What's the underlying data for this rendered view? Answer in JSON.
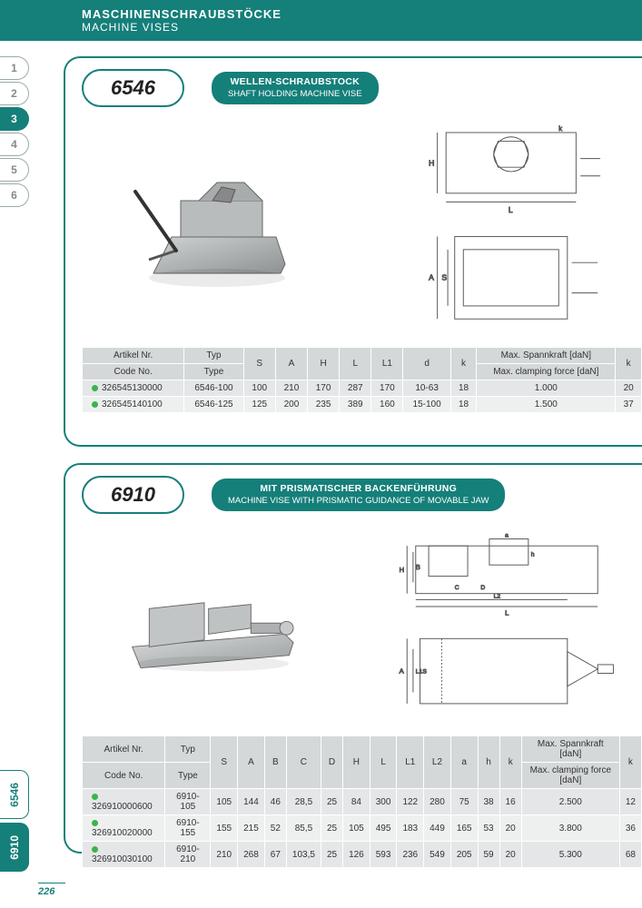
{
  "header": {
    "de": "MASCHINENSCHRAUBSTÖCKE",
    "en": "MACHINE VISES"
  },
  "page_number": "226",
  "nav_tabs": [
    "1",
    "2",
    "3",
    "4",
    "5",
    "6"
  ],
  "active_tab": "3",
  "side_index": [
    {
      "label": "6546",
      "active": false
    },
    {
      "label": "6910",
      "active": true
    }
  ],
  "colors": {
    "brand": "#157f7a",
    "table_header": "#d4d8d9",
    "table_row": "#e4e6e7",
    "table_row_alt": "#eef0f0",
    "stock_dot": "#3ab54a"
  },
  "products": [
    {
      "code": "6546",
      "title_de": "WELLEN-SCHRAUBSTOCK",
      "title_en": "SHAFT HOLDING MACHINE VISE",
      "table": {
        "header_rows": [
          [
            "Artikel Nr.",
            "Typ",
            "S",
            "A",
            "H",
            "L",
            "L1",
            "d",
            "k",
            "Max. Spannkraft [daN]",
            "k"
          ],
          [
            "Code No.",
            "Type",
            "",
            "",
            "",
            "",
            "",
            "",
            "",
            "Max. clamping force [daN]",
            ""
          ]
        ],
        "columns_merge": [
          0,
          1,
          9
        ],
        "rows": [
          [
            "326545130000",
            "6546-100",
            "100",
            "210",
            "170",
            "287",
            "170",
            "10-63",
            "18",
            "1.000",
            "20"
          ],
          [
            "326545140100",
            "6546-125",
            "125",
            "200",
            "235",
            "389",
            "160",
            "15-100",
            "18",
            "1.500",
            "37"
          ]
        ]
      }
    },
    {
      "code": "6910",
      "title_de": "MIT PRISMATISCHER BACKENFÜHRUNG",
      "title_en": "MACHINE VISE WITH PRISMATIC GUIDANCE OF MOVABLE JAW",
      "table": {
        "header_rows": [
          [
            "Artikel Nr.",
            "Typ",
            "S",
            "A",
            "B",
            "C",
            "D",
            "H",
            "L",
            "L1",
            "L2",
            "a",
            "h",
            "k",
            "Max. Spannkraft [daN]",
            "k"
          ],
          [
            "Code No.",
            "Type",
            "",
            "",
            "",
            "",
            "",
            "",
            "",
            "",
            "",
            "",
            "",
            "",
            "Max. clamping force [daN]",
            ""
          ]
        ],
        "columns_merge": [
          0,
          1,
          14
        ],
        "rows": [
          [
            "326910000600",
            "6910-105",
            "105",
            "144",
            "46",
            "28,5",
            "25",
            "84",
            "300",
            "122",
            "280",
            "75",
            "38",
            "16",
            "2.500",
            "12"
          ],
          [
            "326910020000",
            "6910-155",
            "155",
            "215",
            "52",
            "85,5",
            "25",
            "105",
            "495",
            "183",
            "449",
            "165",
            "53",
            "20",
            "3.800",
            "36"
          ],
          [
            "326910030100",
            "6910-210",
            "210",
            "268",
            "67",
            "103,5",
            "25",
            "126",
            "593",
            "236",
            "549",
            "205",
            "59",
            "20",
            "5.300",
            "68"
          ]
        ]
      }
    }
  ]
}
